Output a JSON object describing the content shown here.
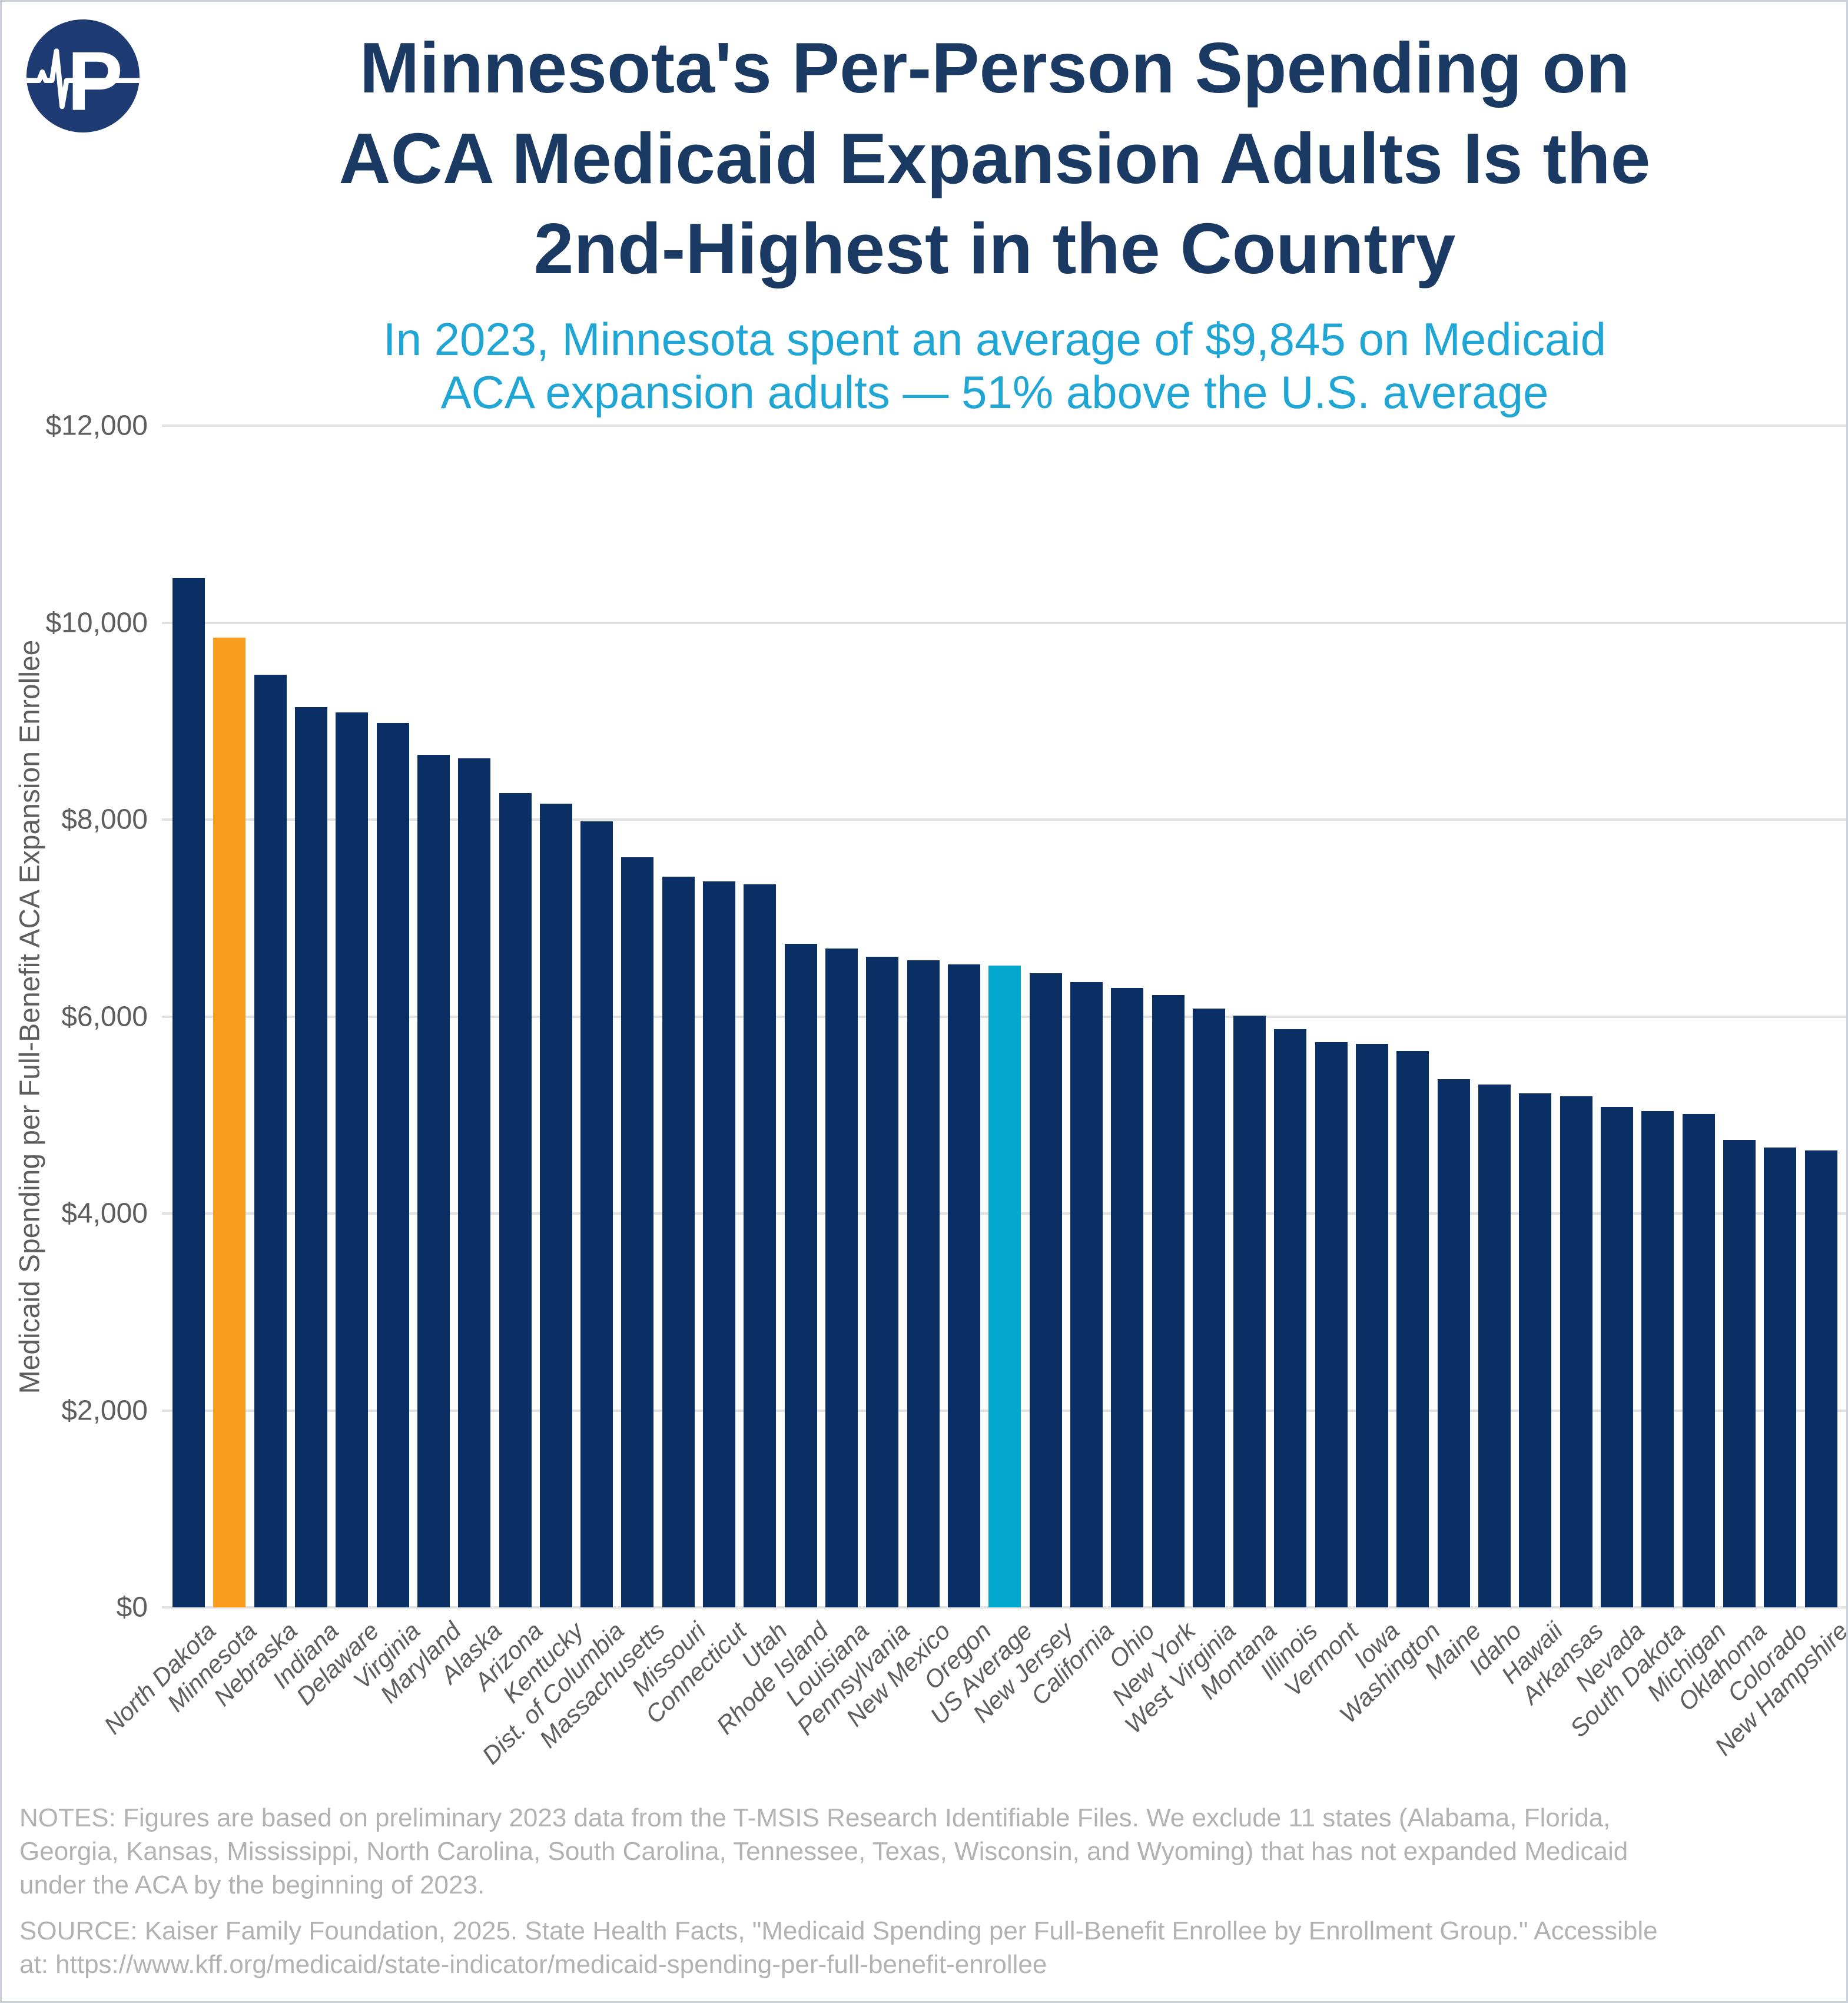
{
  "chart_data": {
    "type": "bar",
    "title": "Minnesota's Per-Person Spending on\nACA Medicaid Expansion Adults Is the\n2nd-Highest in the Country",
    "subtitle": "In 2023, Minnesota spent an average of $9,845 on Medicaid\nACA expansion adults — 51% above the U.S. average",
    "xlabel": "",
    "ylabel": "Medicaid Spending per Full-Benefit ACA Expansion Enrollee",
    "ylim": [
      0,
      12000
    ],
    "grid": true,
    "legend": "none",
    "ytick_values": [
      0,
      2000,
      4000,
      6000,
      8000,
      10000,
      12000
    ],
    "ytick_labels": [
      "$0",
      "$2,000",
      "$4,000",
      "$6,000",
      "$8,000",
      "$10,000",
      "$12,000"
    ],
    "categories": [
      "North Dakota",
      "Minnesota",
      "Nebraska",
      "Indiana",
      "Delaware",
      "Virginia",
      "Maryland",
      "Alaska",
      "Arizona",
      "Kentucky",
      "Dist. of Columbia",
      "Massachusetts",
      "Missouri",
      "Connecticut",
      "Utah",
      "Rhode Island",
      "Louisiana",
      "Pennsylvania",
      "New Mexico",
      "Oregon",
      "US Average",
      "New Jersey",
      "California",
      "Ohio",
      "New York",
      "West Virginia",
      "Montana",
      "Illinois",
      "Vermont",
      "Iowa",
      "Washington",
      "Maine",
      "Idaho",
      "Hawaii",
      "Arkansas",
      "Nevada",
      "South Dakota",
      "Michigan",
      "Oklahoma",
      "Colorado",
      "New Hampshire"
    ],
    "values": [
      10450,
      9845,
      9470,
      9140,
      9090,
      8980,
      8660,
      8620,
      8270,
      8160,
      7980,
      7620,
      7420,
      7370,
      7340,
      6740,
      6690,
      6610,
      6570,
      6530,
      6520,
      6440,
      6350,
      6290,
      6220,
      6080,
      6010,
      5870,
      5740,
      5720,
      5650,
      5360,
      5310,
      5220,
      5190,
      5080,
      5040,
      5010,
      4750,
      4670,
      4640
    ],
    "bar_colors": {
      "default": "#0a2f64",
      "Minnesota": "#fa9c1e",
      "US Average": "#02a7ce"
    },
    "highlighted_value_minnesota": "$9,845",
    "highlight_note": "51% above the U.S. average"
  },
  "logo": {
    "letter": "P",
    "circle_color": "#1e3c73",
    "mark_color": "#ffffff"
  },
  "footer": {
    "notes": "NOTES: Figures are based on preliminary 2023 data from the T-MSIS Research Identifiable Files. We exclude 11 states (Alabama, Florida,\nGeorgia, Kansas, Mississippi, North Carolina, South Carolina, Tennessee, Texas, Wisconsin, and Wyoming) that has not expanded Medicaid\nunder the ACA by the beginning of 2023.",
    "source": "SOURCE: Kaiser Family Foundation, 2025. State Health Facts, \"Medicaid Spending per Full-Benefit Enrollee by Enrollment Group.\" Accessible\nat: https://www.kff.org/medicaid/state-indicator/medicaid-spending-per-full-benefit-enrollee"
  }
}
